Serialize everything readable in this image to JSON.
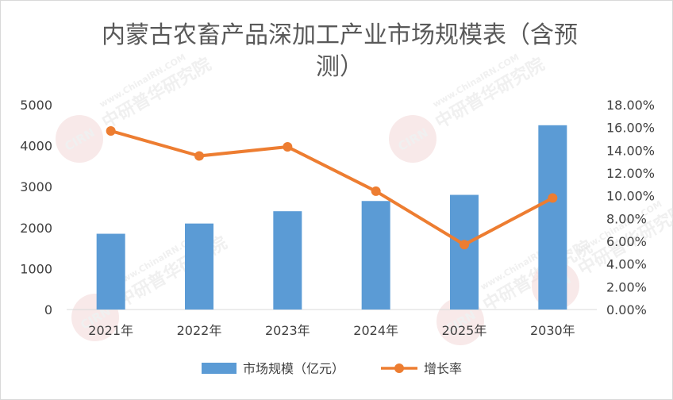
{
  "chart_data": {
    "type": "bar",
    "title": "内蒙古农畜产品深加工产业市场规模表（含预测）",
    "categories": [
      "2021年",
      "2022年",
      "2023年",
      "2024年",
      "2025年",
      "2030年"
    ],
    "series": [
      {
        "name": "市场规模（亿元）",
        "type": "bar",
        "axis": "left",
        "color": "#5b9bd5",
        "values": [
          1850,
          2100,
          2400,
          2650,
          2800,
          4500
        ]
      },
      {
        "name": "增长率",
        "type": "line",
        "axis": "right",
        "color": "#ed7d31",
        "values": [
          0.157,
          0.135,
          0.143,
          0.104,
          0.057,
          0.098
        ]
      }
    ],
    "ylim_left": [
      0,
      5000
    ],
    "ylim_right": [
      0,
      0.18
    ],
    "left_ticks": [
      "0",
      "1000",
      "2000",
      "3000",
      "4000",
      "5000"
    ],
    "right_ticks": [
      "0.00%",
      "2.00%",
      "4.00%",
      "6.00%",
      "8.00%",
      "10.00%",
      "12.00%",
      "14.00%",
      "16.00%",
      "18.00%"
    ],
    "grid": false,
    "legend_position": "bottom"
  },
  "watermark": {
    "logo_text": "CIRN",
    "brand_text": "中研普华研究院",
    "url_text": "www.ChinaIRN.COM"
  }
}
